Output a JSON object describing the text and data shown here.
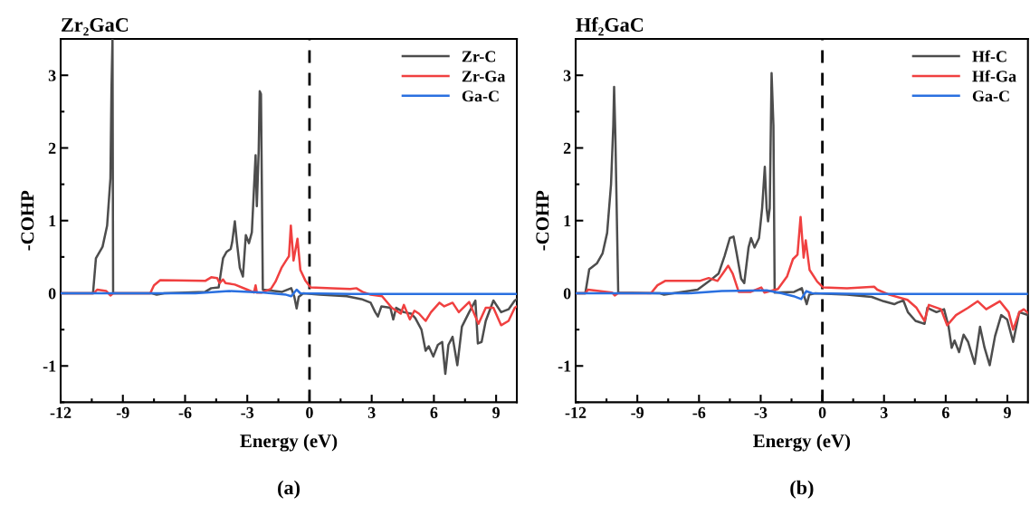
{
  "chart_data": [
    {
      "type": "line",
      "title": "Zr₂GaC",
      "xlabel": "Energy (eV)",
      "ylabel": "-COHP",
      "annotations": [
        "(a)"
      ],
      "xlim": [
        -12,
        10
      ],
      "xticks": [
        -12,
        -9,
        -6,
        -3,
        0,
        3,
        6,
        9
      ],
      "ylim": [
        -1.5,
        3.5
      ],
      "yticks": [
        -1,
        0,
        1,
        2,
        3
      ],
      "legend": "top right",
      "grid": false,
      "line_style": "solid",
      "marker": "none",
      "ref_lines": [
        {
          "axis": "x",
          "value": 0,
          "label": null,
          "color": "#000000",
          "line_style": "dashed"
        }
      ],
      "series": [
        {
          "name": "Zr-C",
          "color": "#4d4d4d",
          "x": [
            -12,
            -10.44,
            -10.3,
            -9.98,
            -9.76,
            -9.6,
            -9.55,
            -9.5,
            -9.47,
            -7.6,
            -7.37,
            -7.0,
            -5.03,
            -4.74,
            -4.38,
            -4.24,
            -4.17,
            -4.0,
            -3.8,
            -3.73,
            -3.6,
            -3.5,
            -3.36,
            -3.21,
            -3.07,
            -2.92,
            -2.78,
            -2.6,
            -2.54,
            -2.45,
            -2.4,
            -2.34,
            -2.25,
            -1.32,
            -0.88,
            -0.73,
            -0.62,
            -0.52,
            -0.3,
            0.5,
            1.8,
            2.5,
            2.95,
            3.17,
            3.3,
            3.47,
            3.9,
            4.04,
            4.18,
            4.55,
            4.9,
            5.1,
            5.4,
            5.6,
            5.75,
            5.97,
            6.19,
            6.4,
            6.55,
            6.7,
            6.9,
            7.13,
            7.35,
            7.7,
            8.0,
            8.12,
            8.3,
            8.5,
            8.87,
            9.24,
            9.6,
            9.9,
            10
          ],
          "values": [
            0,
            0,
            0.48,
            0.64,
            0.93,
            1.58,
            2.8,
            3.5,
            0,
            0,
            -0.02,
            0,
            0.02,
            0.07,
            0.08,
            0.35,
            0.48,
            0.57,
            0.61,
            0.7,
            0.99,
            0.7,
            0.35,
            0.23,
            0.8,
            0.69,
            0.84,
            1.9,
            1.2,
            1.96,
            2.78,
            2.74,
            0.05,
            0.02,
            0.07,
            -0.05,
            -0.21,
            -0.05,
            0,
            -0.02,
            -0.04,
            -0.08,
            -0.13,
            -0.26,
            -0.32,
            -0.18,
            -0.2,
            -0.36,
            -0.2,
            -0.26,
            -0.28,
            -0.34,
            -0.5,
            -0.79,
            -0.73,
            -0.87,
            -0.71,
            -0.67,
            -1.11,
            -0.71,
            -0.6,
            -0.99,
            -0.46,
            -0.26,
            -0.1,
            -0.69,
            -0.67,
            -0.38,
            -0.1,
            -0.26,
            -0.22,
            -0.1,
            -0.08
          ]
        },
        {
          "name": "Zr-Ga",
          "color": "#f04040",
          "x": [
            -12,
            -10.4,
            -10.24,
            -9.8,
            -9.6,
            -9.47,
            -7.68,
            -7.5,
            -7.2,
            -5.03,
            -4.74,
            -4.45,
            -4.34,
            -4.17,
            -4.05,
            -3.6,
            -3.0,
            -2.68,
            -2.6,
            -2.54,
            -2.3,
            -1.86,
            -1.64,
            -1.35,
            -1.13,
            -0.99,
            -0.9,
            -0.77,
            -0.58,
            -0.44,
            -0.19,
            0.05,
            1.1,
            1.97,
            2.26,
            2.55,
            2.95,
            3.5,
            3.97,
            4.4,
            4.55,
            4.84,
            5.06,
            5.28,
            5.6,
            5.86,
            6.27,
            6.5,
            6.9,
            7.2,
            7.7,
            8.15,
            8.5,
            8.87,
            9.24,
            9.6,
            9.9,
            10
          ],
          "values": [
            0,
            0,
            0.05,
            0.03,
            -0.03,
            0,
            0,
            0.11,
            0.18,
            0.17,
            0.22,
            0.21,
            0.14,
            0.19,
            0.14,
            0.12,
            0.05,
            0.01,
            0.11,
            0.01,
            0.01,
            0.06,
            0.16,
            0.35,
            0.45,
            0.51,
            0.93,
            0.45,
            0.75,
            0.32,
            0.17,
            0.08,
            0.07,
            0.06,
            0.07,
            0.02,
            -0.02,
            -0.04,
            -0.2,
            -0.28,
            -0.16,
            -0.36,
            -0.24,
            -0.28,
            -0.38,
            -0.26,
            -0.13,
            -0.18,
            -0.13,
            -0.26,
            -0.12,
            -0.42,
            -0.2,
            -0.2,
            -0.44,
            -0.38,
            -0.2,
            -0.18
          ]
        },
        {
          "name": "Ga-C",
          "color": "#2a70e0",
          "x": [
            -12,
            -5.5,
            -3.87,
            -2.2,
            -1.13,
            -0.88,
            -0.62,
            -0.44,
            2,
            5,
            8,
            10
          ],
          "values": [
            0,
            0,
            0.03,
            0.01,
            -0.02,
            -0.04,
            0.05,
            0,
            -0.01,
            -0.01,
            -0.01,
            -0.01
          ]
        }
      ]
    },
    {
      "type": "line",
      "title": "Hf₂GaC",
      "xlabel": "Energy (eV)",
      "ylabel": "-COHP",
      "annotations": [
        "(b)"
      ],
      "xlim": [
        -12,
        10
      ],
      "xticks": [
        -12,
        -9,
        -6,
        -3,
        0,
        3,
        6,
        9
      ],
      "ylim": [
        -1.5,
        3.5
      ],
      "yticks": [
        -1,
        0,
        1,
        2,
        3
      ],
      "legend": "top right",
      "grid": false,
      "line_style": "solid",
      "marker": "none",
      "ref_lines": [
        {
          "axis": "x",
          "value": 0,
          "label": null,
          "color": "#000000",
          "line_style": "dashed"
        }
      ],
      "series": [
        {
          "name": "Hf-C",
          "color": "#4d4d4d",
          "x": [
            -12,
            -11.53,
            -11.34,
            -10.97,
            -10.69,
            -10.47,
            -10.28,
            -10.17,
            -10.13,
            -10.07,
            -9.93,
            -7.9,
            -7.7,
            -6.07,
            -5.49,
            -5.05,
            -4.76,
            -4.5,
            -4.32,
            -4.17,
            -3.95,
            -3.8,
            -3.59,
            -3.47,
            -3.3,
            -3.08,
            -2.93,
            -2.8,
            -2.71,
            -2.64,
            -2.56,
            -2.47,
            -2.38,
            -2.32,
            -1.37,
            -1.0,
            -0.93,
            -0.76,
            -0.64,
            -0.35,
            1.2,
            2.4,
            2.98,
            3.5,
            3.65,
            3.94,
            4.16,
            4.53,
            4.97,
            5.11,
            5.55,
            5.92,
            6.14,
            6.29,
            6.43,
            6.65,
            6.87,
            7.09,
            7.41,
            7.67,
            7.89,
            8.14,
            8.4,
            8.7,
            8.99,
            9.28,
            9.58,
            10
          ],
          "values": [
            0,
            0,
            0.33,
            0.41,
            0.55,
            0.83,
            1.5,
            2.31,
            2.84,
            2.18,
            0.01,
            0,
            -0.02,
            0.05,
            0.17,
            0.27,
            0.51,
            0.76,
            0.78,
            0.55,
            0.2,
            0.14,
            0.63,
            0.76,
            0.63,
            0.76,
            1.17,
            1.74,
            1.17,
            0.99,
            1.17,
            3.03,
            2.31,
            0.01,
            0.02,
            0.07,
            0,
            -0.15,
            -0.02,
            0,
            -0.02,
            -0.05,
            -0.11,
            -0.15,
            -0.13,
            -0.1,
            -0.26,
            -0.38,
            -0.42,
            -0.2,
            -0.26,
            -0.22,
            -0.46,
            -0.75,
            -0.65,
            -0.81,
            -0.57,
            -0.67,
            -0.97,
            -0.46,
            -0.75,
            -0.99,
            -0.59,
            -0.3,
            -0.36,
            -0.67,
            -0.26,
            -0.3
          ]
        },
        {
          "name": "Hf-Ga",
          "color": "#f04040",
          "x": [
            -12,
            -11.53,
            -11.4,
            -10.23,
            -10.1,
            -9.94,
            -8.34,
            -8.02,
            -7.65,
            -5.97,
            -5.53,
            -5.1,
            -4.8,
            -4.58,
            -4.36,
            -4.07,
            -3.48,
            -2.97,
            -2.82,
            -2.16,
            -1.72,
            -1.43,
            -1.21,
            -1.06,
            -0.91,
            -0.81,
            -0.62,
            -0.25,
            0.04,
            1.2,
            2.52,
            2.67,
            3.26,
            4.14,
            4.58,
            4.97,
            5.18,
            5.77,
            6.07,
            6.5,
            7.09,
            7.56,
            7.97,
            8.63,
            9.06,
            9.28,
            9.58,
            9.8,
            10
          ],
          "values": [
            0,
            0,
            0.05,
            0.01,
            -0.03,
            0,
            0,
            0.11,
            0.17,
            0.17,
            0.21,
            0.17,
            0.29,
            0.38,
            0.27,
            0.02,
            0.02,
            0.08,
            0.01,
            0.06,
            0.23,
            0.47,
            0.53,
            1.05,
            0.49,
            0.73,
            0.32,
            0.16,
            0.08,
            0.07,
            0.09,
            0.05,
            -0.02,
            -0.09,
            -0.2,
            -0.38,
            -0.16,
            -0.22,
            -0.44,
            -0.3,
            -0.2,
            -0.11,
            -0.22,
            -0.11,
            -0.26,
            -0.5,
            -0.26,
            -0.22,
            -0.27
          ]
        },
        {
          "name": "Ga-C",
          "color": "#2a70e0",
          "x": [
            -12,
            -6.5,
            -4.9,
            -2.71,
            -1.98,
            -1.4,
            -1.03,
            -0.78,
            -0.5,
            2,
            5,
            8,
            10
          ],
          "values": [
            0,
            0,
            0.03,
            0.04,
            0,
            -0.04,
            -0.08,
            0.03,
            0,
            -0.01,
            -0.01,
            -0.01,
            -0.01
          ]
        }
      ]
    }
  ]
}
